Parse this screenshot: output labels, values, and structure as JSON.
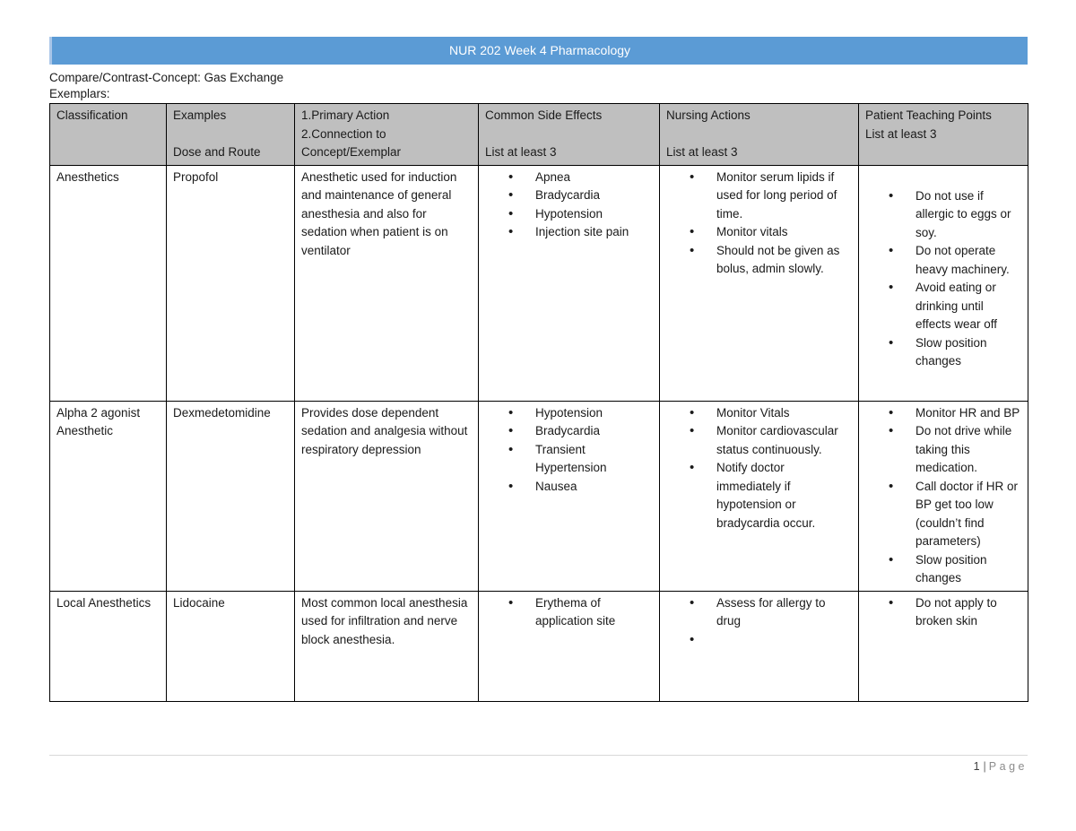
{
  "banner": {
    "title": "NUR 202 Week 4 Pharmacology",
    "bg_color": "#5B9BD5"
  },
  "intro": {
    "concept_line": "Compare/Contrast-Concept: Gas Exchange",
    "exemplars_label": "Exemplars:"
  },
  "table": {
    "header_bg_color": "#BFBFBF",
    "columns": [
      {
        "lines": [
          "Classification",
          "",
          ""
        ]
      },
      {
        "lines": [
          "Examples",
          "",
          "Dose and Route"
        ]
      },
      {
        "lines": [
          "1.Primary Action",
          "2.Connection to",
          "Concept/Exemplar"
        ]
      },
      {
        "lines": [
          "Common Side Effects",
          "",
          "List at least 3"
        ]
      },
      {
        "lines": [
          "Nursing Actions",
          "",
          "List at least 3"
        ]
      },
      {
        "lines": [
          "Patient Teaching Points",
          "List at least 3",
          ""
        ]
      }
    ],
    "rows": [
      {
        "classification": "Anesthetics",
        "example": "Propofol",
        "primary_action": "Anesthetic used for induction and maintenance of general anesthesia and also for sedation when patient is on ventilator",
        "side_effects": [
          "Apnea",
          "Bradycardia",
          "Hypotension",
          "Injection site pain"
        ],
        "nursing_actions": [
          "Monitor serum lipids if used for long period of time.",
          "Monitor vitals",
          "Should not be given as bolus, admin slowly."
        ],
        "teaching_points": [
          "Do not use if allergic to eggs or soy.",
          "Do not operate heavy machinery.",
          "Avoid eating or drinking until effects wear off",
          "Slow position changes"
        ]
      },
      {
        "classification": "Alpha 2 agonist Anesthetic",
        "example": "Dexmedetomidine",
        "primary_action": "Provides dose dependent sedation and analgesia without respiratory depression",
        "side_effects": [
          "Hypotension",
          "Bradycardia",
          "Transient Hypertension",
          "Nausea"
        ],
        "nursing_actions": [
          "Monitor Vitals",
          "Monitor cardiovascular status continuously.",
          "Notify doctor immediately if hypotension or bradycardia occur."
        ],
        "teaching_points": [
          "Monitor HR and BP",
          "Do not drive while taking this medication.",
          "Call doctor if HR or BP get too low (couldn’t find parameters)",
          "Slow position changes"
        ]
      },
      {
        "classification": "Local Anesthetics",
        "example": "Lidocaine",
        "primary_action": "Most common local anesthesia used for infiltration and nerve block anesthesia.",
        "side_effects": [
          "Erythema of application site"
        ],
        "nursing_actions": [
          "Assess for allergy to drug",
          ""
        ],
        "teaching_points": [
          "Do not apply to broken skin"
        ]
      }
    ]
  },
  "footer": {
    "page_number": "1",
    "separator": "|",
    "page_label": "Page"
  }
}
